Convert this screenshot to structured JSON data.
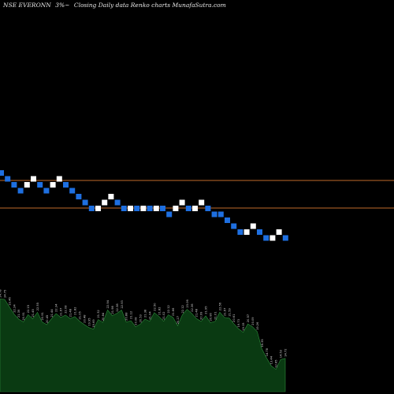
{
  "header": {
    "symbol": "NSE EVERONN",
    "change": "3%~",
    "description": "Closing Daily data Renko charts MunafaSutra.com"
  },
  "colors": {
    "background": "#000000",
    "up_brick": "#ffffff",
    "down_brick": "#1e6fe0",
    "reference_line": "#c06a2a",
    "volume_fill": "#0a3a12",
    "volume_edge": "#2d8a3a",
    "label_color": "#d0d0d0"
  },
  "chart_data": {
    "type": "renko",
    "bricks": [
      {
        "dir": "down",
        "level": 0
      },
      {
        "dir": "down",
        "level": 1
      },
      {
        "dir": "down",
        "level": 2
      },
      {
        "dir": "down",
        "level": 3
      },
      {
        "dir": "up",
        "level": 2
      },
      {
        "dir": "up",
        "level": 1
      },
      {
        "dir": "down",
        "level": 2
      },
      {
        "dir": "down",
        "level": 3
      },
      {
        "dir": "up",
        "level": 2
      },
      {
        "dir": "up",
        "level": 1
      },
      {
        "dir": "down",
        "level": 2
      },
      {
        "dir": "down",
        "level": 3
      },
      {
        "dir": "down",
        "level": 4
      },
      {
        "dir": "down",
        "level": 5
      },
      {
        "dir": "down",
        "level": 6
      },
      {
        "dir": "up",
        "level": 6
      },
      {
        "dir": "up",
        "level": 5
      },
      {
        "dir": "up",
        "level": 4
      },
      {
        "dir": "down",
        "level": 5
      },
      {
        "dir": "down",
        "level": 6
      },
      {
        "dir": "up",
        "level": 6
      },
      {
        "dir": "down",
        "level": 6
      },
      {
        "dir": "up",
        "level": 6
      },
      {
        "dir": "down",
        "level": 6
      },
      {
        "dir": "up",
        "level": 6
      },
      {
        "dir": "down",
        "level": 6
      },
      {
        "dir": "down",
        "level": 7
      },
      {
        "dir": "up",
        "level": 6
      },
      {
        "dir": "up",
        "level": 5
      },
      {
        "dir": "down",
        "level": 6
      },
      {
        "dir": "up",
        "level": 6
      },
      {
        "dir": "up",
        "level": 5
      },
      {
        "dir": "down",
        "level": 6
      },
      {
        "dir": "down",
        "level": 7
      },
      {
        "dir": "down",
        "level": 7
      },
      {
        "dir": "down",
        "level": 8
      },
      {
        "dir": "down",
        "level": 9
      },
      {
        "dir": "down",
        "level": 10
      },
      {
        "dir": "up",
        "level": 10
      },
      {
        "dir": "up",
        "level": 9
      },
      {
        "dir": "down",
        "level": 10
      },
      {
        "dir": "down",
        "level": 11
      },
      {
        "dir": "up",
        "level": 11
      },
      {
        "dir": "up",
        "level": 10
      },
      {
        "dir": "down",
        "level": 11
      }
    ],
    "reference_lines": [
      "upper",
      "lower"
    ],
    "volume": [
      {
        "value": 24.78,
        "label": "24.78"
      },
      {
        "value": 24.75,
        "label": "24.75"
      },
      {
        "value": 23.46,
        "label": "23.46"
      },
      {
        "value": 22.24,
        "label": "22.24"
      },
      {
        "value": 21.39,
        "label": "21.39"
      },
      {
        "value": 20.91,
        "label": "20.91"
      },
      {
        "value": 22.15,
        "label": "22.15"
      },
      {
        "value": 21.45,
        "label": "21.45"
      },
      {
        "value": 22.55,
        "label": "22.55"
      },
      {
        "value": 20.91,
        "label": "20.91"
      },
      {
        "value": 20.45,
        "label": "20.45"
      },
      {
        "value": 21.44,
        "label": "21.44"
      },
      {
        "value": 22.34,
        "label": "22.34"
      },
      {
        "value": 21.67,
        "label": "21.67"
      },
      {
        "value": 22.08,
        "label": "22.08"
      },
      {
        "value": 21.48,
        "label": "21.48"
      },
      {
        "value": 21.82,
        "label": "21.82"
      },
      {
        "value": 21.05,
        "label": "21.05"
      },
      {
        "value": 20.48,
        "label": "20.48"
      },
      {
        "value": 19.95,
        "label": "19.95"
      },
      {
        "value": 19.69,
        "label": "19.69"
      },
      {
        "value": 21.32,
        "label": "21.32"
      },
      {
        "value": 20.84,
        "label": "20.84"
      },
      {
        "value": 22.94,
        "label": "22.94"
      },
      {
        "value": 21.98,
        "label": "21.98"
      },
      {
        "value": 22.38,
        "label": "22.38"
      },
      {
        "value": 22.93,
        "label": "22.93"
      },
      {
        "value": 20.88,
        "label": "20.88"
      },
      {
        "value": 21.12,
        "label": "21.12"
      },
      {
        "value": 20.08,
        "label": "20.08"
      },
      {
        "value": 20.53,
        "label": "20.53"
      },
      {
        "value": 21.38,
        "label": "21.38"
      },
      {
        "value": 21.04,
        "label": "21.04"
      },
      {
        "value": 22.5,
        "label": "22.50"
      },
      {
        "value": 21.82,
        "label": "21.82"
      },
      {
        "value": 21.02,
        "label": "21.02"
      },
      {
        "value": 22.12,
        "label": "22.12"
      },
      {
        "value": 21.66,
        "label": "21.66"
      },
      {
        "value": 20.27,
        "label": "20.27"
      },
      {
        "value": 22.12,
        "label": "22.12"
      },
      {
        "value": 23.06,
        "label": "23.06"
      },
      {
        "value": 22.36,
        "label": "22.36"
      },
      {
        "value": 21.48,
        "label": "21.48"
      },
      {
        "value": 20.99,
        "label": "20.99"
      },
      {
        "value": 21.95,
        "label": "21.95"
      },
      {
        "value": 20.8,
        "label": "20.80"
      },
      {
        "value": 21.01,
        "label": "21.01"
      },
      {
        "value": 22.56,
        "label": "22.56"
      },
      {
        "value": 21.67,
        "label": "21.67"
      },
      {
        "value": 21.59,
        "label": "21.59"
      },
      {
        "value": 20.61,
        "label": "20.61"
      },
      {
        "value": 19.73,
        "label": "19.73"
      },
      {
        "value": 19.15,
        "label": "19.15"
      },
      {
        "value": 20.57,
        "label": "20.57"
      },
      {
        "value": 20.09,
        "label": "20.09"
      },
      {
        "value": 19.26,
        "label": "19.26"
      },
      {
        "value": 16.35,
        "label": "16.35"
      },
      {
        "value": 14.78,
        "label": "14.78"
      },
      {
        "value": 13.44,
        "label": "13.44"
      },
      {
        "value": 12.85,
        "label": "12.85"
      },
      {
        "value": 14.53,
        "label": "14.53"
      },
      {
        "value": 14.72,
        "label": "14.72"
      }
    ]
  }
}
